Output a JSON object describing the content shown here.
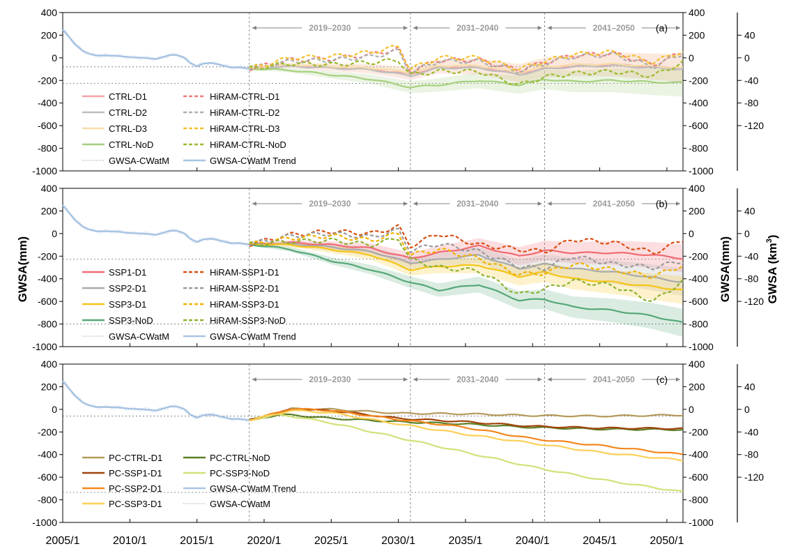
{
  "chart_data": {
    "type": "line",
    "x_range": [
      2005.0,
      2051.2
    ],
    "x_ticks": [
      "2005/1",
      "2010/1",
      "2015/1",
      "2020/1",
      "2025/1",
      "2030/1",
      "2035/1",
      "2040/1",
      "2045/1",
      "2050/1"
    ],
    "x_tick_years": [
      2005,
      2010,
      2015,
      2020,
      2025,
      2030,
      2035,
      2040,
      2045,
      2050
    ],
    "ylabel_left": "GWSA(mm)",
    "ylabel_right": "GWSA(mm)",
    "ylabel_far": "GWSA (km",
    "ylabel_far_sup": "3",
    "ylabel_far_end": ")",
    "ylim": [
      -1000,
      400
    ],
    "y_ticks": [
      "400",
      "200",
      "0",
      "-200",
      "-400",
      "-600",
      "-800",
      "-1000"
    ],
    "y_tick_values": [
      400,
      200,
      0,
      -200,
      -400,
      -600,
      -800,
      -1000
    ],
    "km3_ticks": [
      "40",
      "0",
      "-40",
      "-80",
      "-120"
    ],
    "km3_tick_values": [
      40,
      0,
      -40,
      -80,
      -120
    ],
    "km3_per_mm": 0.2,
    "vlines": [
      2018.9,
      2030.9,
      2040.9
    ],
    "periods": [
      "2019–2030",
      "2031–2040",
      "2041–2050"
    ],
    "baseline": {
      "x": [
        2005.0,
        2005.5,
        2006.0,
        2006.5,
        2007.0,
        2007.5,
        2008.0,
        2009.0,
        2010.0,
        2011.0,
        2012.0,
        2013.0,
        2013.5,
        2014.0,
        2014.5,
        2015.0,
        2015.5,
        2016.0,
        2016.5,
        2017.0,
        2017.5,
        2018.0,
        2018.5,
        2018.9
      ],
      "values": [
        250,
        180,
        110,
        60,
        35,
        20,
        20,
        18,
        5,
        0,
        -10,
        25,
        25,
        5,
        -45,
        -75,
        -50,
        -45,
        -55,
        -70,
        -85,
        -85,
        -90,
        -95
      ]
    },
    "panels": [
      {
        "label": "(a)",
        "hline_values": [
          -80,
          -225
        ],
        "legend": [
          [
            "CTRL-D1",
            "HiRAM-CTRL-D1"
          ],
          [
            "CTRL-D2",
            "HiRAM-CTRL-D2"
          ],
          [
            "CTRL-D3",
            "HiRAM-CTRL-D3"
          ],
          [
            "CTRL-NoD",
            "HiRAM-CTRL-NoD"
          ],
          [
            "GWSA-CWatM",
            "GWSA-CWatM Trend"
          ]
        ],
        "series": [
          {
            "name": "CTRL-D1",
            "style": "solid",
            "color": "#F4A3A8",
            "band": true,
            "x": [
              2018.9,
              2022,
              2025,
              2028,
              2030.9,
              2033,
              2036,
              2039,
              2040.9,
              2043,
              2046,
              2049,
              2051.2
            ],
            "values": [
              -95,
              -70,
              -85,
              -100,
              -145,
              -80,
              -80,
              -140,
              -90,
              -70,
              -60,
              -80,
              -95
            ]
          },
          {
            "name": "CTRL-D2",
            "style": "solid",
            "color": "#BDBDBD",
            "band": false,
            "x": [
              2018.9,
              2022,
              2025,
              2028,
              2030.9,
              2033,
              2036,
              2039,
              2040.9,
              2043,
              2046,
              2049,
              2051.2
            ],
            "values": [
              -95,
              -75,
              -90,
              -105,
              -160,
              -90,
              -90,
              -150,
              -100,
              -80,
              -70,
              -90,
              -100
            ]
          },
          {
            "name": "CTRL-D3",
            "style": "solid",
            "color": "#F6DDA8",
            "band": true,
            "x": [
              2018.9,
              2022,
              2025,
              2028,
              2030.9,
              2033,
              2036,
              2039,
              2040.9,
              2043,
              2046,
              2049,
              2051.2
            ],
            "values": [
              -95,
              -60,
              -75,
              -90,
              -130,
              -70,
              -70,
              -130,
              -80,
              -60,
              -55,
              -75,
              -85
            ]
          },
          {
            "name": "CTRL-NoD",
            "style": "solid",
            "color": "#A6CF7E",
            "band": true,
            "x": [
              2018.9,
              2022,
              2025,
              2028,
              2030.9,
              2033,
              2036,
              2039,
              2040.9,
              2043,
              2046,
              2049,
              2051.2
            ],
            "values": [
              -95,
              -110,
              -150,
              -190,
              -260,
              -240,
              -200,
              -240,
              -190,
              -210,
              -200,
              -215,
              -220
            ]
          },
          {
            "name": "HiRAM-CTRL-D1",
            "style": "dash",
            "color": "#F07A7A",
            "band": false,
            "x": [
              2018.9,
              2022,
              2025,
              2028,
              2030,
              2030.9,
              2033,
              2036,
              2039,
              2040.9,
              2043,
              2046,
              2049,
              2051.2
            ],
            "values": [
              -95,
              -20,
              -10,
              30,
              80,
              -120,
              -20,
              -20,
              -110,
              -40,
              20,
              40,
              -60,
              50
            ]
          },
          {
            "name": "HiRAM-CTRL-D2",
            "style": "dash",
            "color": "#AFAFAF",
            "band": false,
            "x": [
              2018.9,
              2022,
              2025,
              2028,
              2030,
              2030.9,
              2033,
              2036,
              2039,
              2040.9,
              2043,
              2046,
              2049,
              2051.2
            ],
            "values": [
              -95,
              -30,
              -20,
              10,
              60,
              -130,
              -30,
              -30,
              -120,
              -50,
              10,
              30,
              -80,
              40
            ]
          },
          {
            "name": "HiRAM-CTRL-D3",
            "style": "dash",
            "color": "#F2C12E",
            "band": false,
            "x": [
              2018.9,
              2022,
              2025,
              2028,
              2030,
              2030.9,
              2033,
              2036,
              2039,
              2040.9,
              2043,
              2046,
              2049,
              2051.2
            ],
            "values": [
              -95,
              0,
              10,
              50,
              100,
              -100,
              0,
              0,
              -100,
              -30,
              30,
              50,
              -40,
              60
            ]
          },
          {
            "name": "HiRAM-CTRL-NoD",
            "style": "dash",
            "color": "#9ABB2C",
            "band": false,
            "x": [
              2018.9,
              2022,
              2025,
              2028,
              2030,
              2030.9,
              2033,
              2036,
              2039,
              2040.9,
              2043,
              2046,
              2049,
              2051.2
            ],
            "values": [
              -95,
              -50,
              -60,
              -40,
              -20,
              -150,
              -120,
              -120,
              -240,
              -170,
              -140,
              -120,
              -160,
              -40
            ]
          }
        ]
      },
      {
        "label": "(b)",
        "hline_values": [
          -225,
          -800
        ],
        "legend": [
          [
            "SSP1-D1",
            "HiRAM-SSP1-D1"
          ],
          [
            "SSP2-D1",
            "HiRAM-SSP2-D1"
          ],
          [
            "SSP3-D1",
            "HiRAM-SSP3-D1"
          ],
          [
            "SSP3-NoD",
            "HiRAM-SSP3-NoD"
          ],
          [
            "GWSA-CWatM",
            "GWSA-CWatM Trend"
          ]
        ],
        "series": [
          {
            "name": "SSP1-D1",
            "style": "solid",
            "color": "#F06A72",
            "band": true,
            "x": [
              2018.9,
              2022,
              2025,
              2028,
              2030.9,
              2033,
              2036,
              2039,
              2040.9,
              2043,
              2046,
              2049,
              2051.2
            ],
            "values": [
              -95,
              -80,
              -100,
              -130,
              -220,
              -170,
              -110,
              -200,
              -150,
              -170,
              -170,
              -190,
              -220
            ]
          },
          {
            "name": "SSP2-D1",
            "style": "solid",
            "color": "#A9A9A9",
            "band": true,
            "x": [
              2018.9,
              2022,
              2025,
              2028,
              2030.9,
              2033,
              2036,
              2039,
              2040.9,
              2043,
              2046,
              2049,
              2051.2
            ],
            "values": [
              -95,
              -90,
              -120,
              -160,
              -260,
              -230,
              -190,
              -310,
              -270,
              -310,
              -340,
              -390,
              -430
            ]
          },
          {
            "name": "SSP3-D1",
            "style": "solid",
            "color": "#F5C518",
            "band": true,
            "x": [
              2018.9,
              2022,
              2025,
              2028,
              2030.9,
              2033,
              2036,
              2039,
              2040.9,
              2043,
              2046,
              2049,
              2051.2
            ],
            "values": [
              -95,
              -100,
              -140,
              -190,
              -320,
              -290,
              -280,
              -380,
              -340,
              -400,
              -430,
              -470,
              -500
            ]
          },
          {
            "name": "SSP3-NoD",
            "style": "solid",
            "color": "#55A878",
            "band": true,
            "x": [
              2018.9,
              2022,
              2025,
              2028,
              2030.9,
              2033,
              2036,
              2039,
              2040.9,
              2043,
              2046,
              2049,
              2051.2
            ],
            "values": [
              -95,
              -140,
              -240,
              -320,
              -430,
              -500,
              -450,
              -590,
              -580,
              -650,
              -680,
              -730,
              -790
            ]
          },
          {
            "name": "HiRAM-SSP1-D1",
            "style": "dash",
            "color": "#D94E12",
            "band": false,
            "x": [
              2018.9,
              2022,
              2025,
              2028,
              2030,
              2030.9,
              2033,
              2036,
              2039,
              2040.9,
              2043,
              2046,
              2049,
              2051.2
            ],
            "values": [
              -95,
              -10,
              20,
              0,
              60,
              -110,
              0,
              -100,
              -140,
              -160,
              -50,
              -80,
              -170,
              -60
            ]
          },
          {
            "name": "HiRAM-SSP2-D1",
            "style": "dash",
            "color": "#9A9A9A",
            "band": false,
            "x": [
              2018.9,
              2022,
              2025,
              2028,
              2030,
              2030.9,
              2033,
              2036,
              2039,
              2040.9,
              2043,
              2046,
              2049,
              2051.2
            ],
            "values": [
              -95,
              -20,
              0,
              -30,
              30,
              -150,
              -90,
              -160,
              -290,
              -310,
              -200,
              -270,
              -300,
              -240
            ]
          },
          {
            "name": "HiRAM-SSP3-D1",
            "style": "dash",
            "color": "#F2B200",
            "band": false,
            "x": [
              2018.9,
              2022,
              2025,
              2028,
              2030,
              2030.9,
              2033,
              2036,
              2039,
              2040.9,
              2043,
              2046,
              2049,
              2051.2
            ],
            "values": [
              -95,
              -40,
              -20,
              -60,
              0,
              -190,
              -140,
              -220,
              -360,
              -350,
              -270,
              -320,
              -380,
              -280
            ]
          },
          {
            "name": "HiRAM-SSP3-NoD",
            "style": "dash",
            "color": "#8DB230",
            "band": false,
            "x": [
              2018.9,
              2022,
              2025,
              2028,
              2030,
              2030.9,
              2033,
              2036,
              2039,
              2040.9,
              2043,
              2046,
              2049,
              2051.2
            ],
            "values": [
              -95,
              -70,
              -60,
              -100,
              -40,
              -230,
              -300,
              -330,
              -540,
              -490,
              -420,
              -460,
              -600,
              -420
            ]
          }
        ]
      },
      {
        "label": "(c)",
        "hline_values": [
          -60,
          -735
        ],
        "legend": [
          [
            "PC-CTRL-D1",
            "PC-CTRL-NoD"
          ],
          [
            "PC-SSP1-D1",
            "PC-SSP3-NoD"
          ],
          [
            "PC-SSP2-D1",
            "GWSA-CWatM Trend"
          ],
          [
            "PC-SSP3-D1",
            "GWSA-CWatM"
          ]
        ],
        "series": [
          {
            "name": "PC-CTRL-D1",
            "style": "solid",
            "color": "#B49A5A",
            "band": false,
            "x": [
              2018.9,
              2021,
              2022,
              2025,
              2030,
              2035,
              2040,
              2045,
              2051.2
            ],
            "values": [
              -95,
              -40,
              5,
              0,
              -35,
              -40,
              -55,
              -60,
              -50
            ]
          },
          {
            "name": "PC-CTRL-NoD",
            "style": "solid",
            "color": "#5B7F26",
            "band": false,
            "x": [
              2018.9,
              2021,
              2022,
              2025,
              2030,
              2035,
              2040,
              2045,
              2051.2
            ],
            "values": [
              -95,
              -50,
              -50,
              -80,
              -110,
              -130,
              -160,
              -175,
              -180
            ]
          },
          {
            "name": "PC-SSP1-D1",
            "style": "solid",
            "color": "#A0440C",
            "band": false,
            "x": [
              2018.9,
              2021,
              2022,
              2025,
              2030,
              2035,
              2040,
              2045,
              2051.2
            ],
            "values": [
              -95,
              -35,
              0,
              -10,
              -80,
              -110,
              -150,
              -165,
              -170
            ]
          },
          {
            "name": "PC-SSP3-NoD",
            "style": "solid",
            "color": "#D4E07A",
            "band": false,
            "x": [
              2018.9,
              2021,
              2022,
              2025,
              2030,
              2035,
              2040,
              2045,
              2051.2
            ],
            "values": [
              -95,
              -50,
              -60,
              -120,
              -250,
              -380,
              -510,
              -620,
              -730
            ]
          },
          {
            "name": "PC-SSP2-D1",
            "style": "solid",
            "color": "#F4871F",
            "band": false,
            "x": [
              2018.9,
              2021,
              2022,
              2025,
              2030,
              2035,
              2040,
              2045,
              2051.2
            ],
            "values": [
              -95,
              -30,
              5,
              -10,
              -90,
              -160,
              -260,
              -320,
              -400
            ]
          },
          {
            "name": "PC-SSP3-D1",
            "style": "solid",
            "color": "#FCCF57",
            "band": false,
            "x": [
              2018.9,
              2021,
              2022,
              2025,
              2030,
              2035,
              2040,
              2045,
              2051.2
            ],
            "values": [
              -95,
              -40,
              -10,
              -30,
              -130,
              -220,
              -300,
              -380,
              -450
            ]
          }
        ]
      }
    ]
  },
  "colors": {
    "baseline_trend": "#A9C4E2",
    "baseline_raw": "#A9C4E2",
    "guide_line": "#6E6E6E",
    "period_text": "#9A9A9A"
  }
}
